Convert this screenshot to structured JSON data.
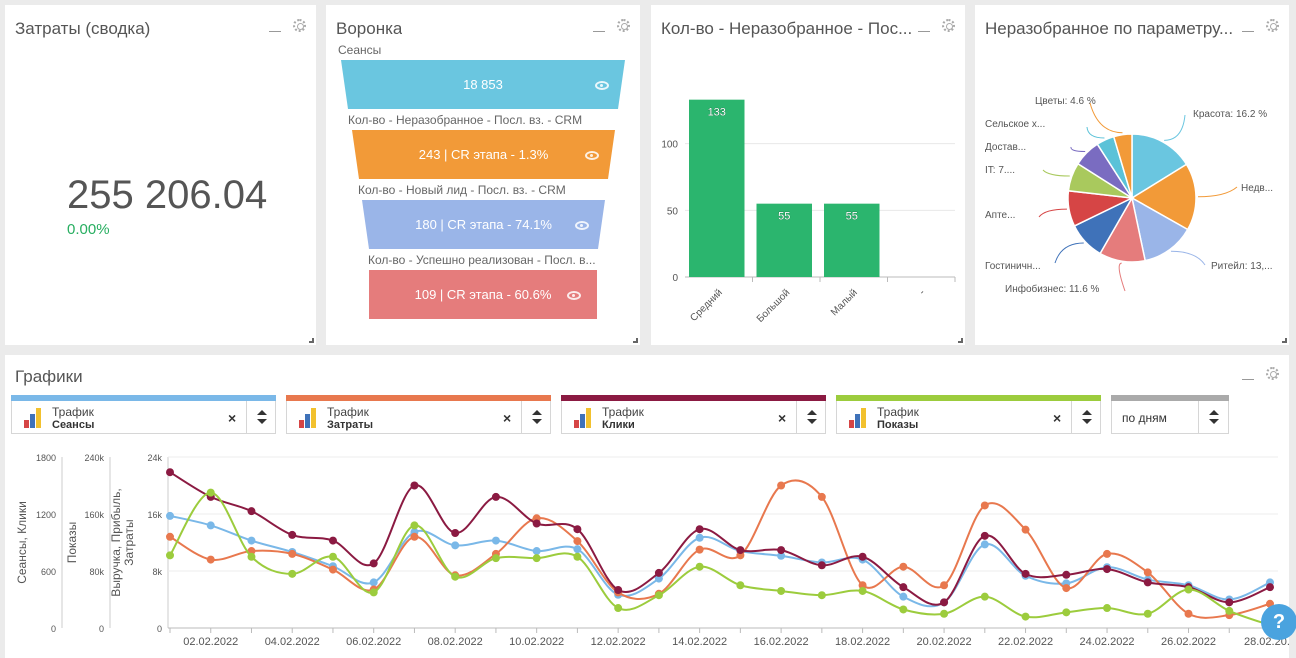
{
  "widgets": {
    "costs": {
      "title": "Затраты (сводка)",
      "value": "255 206.04",
      "delta": "0.00%"
    },
    "funnel": {
      "title": "Воронка",
      "stages": [
        {
          "label": "Сеансы",
          "value": "18 853",
          "color": "#6ac6e0"
        },
        {
          "label": "Кол-во - Неразобранное - Посл. вз. - CRM",
          "value": "243 | CR этапа - 1.3%",
          "color": "#f29a38"
        },
        {
          "label": "Кол-во - Новый лид - Посл. вз. - CRM",
          "value": "180 | CR этапа - 74.1%",
          "color": "#9ab5e8"
        },
        {
          "label": "Кол-во - Успешно реализован - Посл. в...",
          "value": "109 | CR этапа - 60.6%",
          "color": "#e57c7c"
        }
      ]
    },
    "bar": {
      "title": "Кол-во - Неразобранное - Пос..."
    },
    "pie": {
      "title": "Неразобранное по параметру..."
    }
  },
  "chart_data": [
    {
      "type": "bar",
      "categories": [
        "Средний",
        "Большой",
        "Малый",
        "-"
      ],
      "values": [
        133,
        55,
        55,
        0
      ],
      "ylim": [
        0,
        150
      ],
      "yticks": [
        0,
        50,
        100
      ],
      "color": "#2bb56e"
    },
    {
      "type": "pie",
      "slices": [
        {
          "label": "Красота: 16.2 %",
          "value": 16.2,
          "color": "#6ac6e0"
        },
        {
          "label": "Недв...",
          "value": 17.0,
          "color": "#f29a38"
        },
        {
          "label": "Ритейл: 13,...",
          "value": 13.5,
          "color": "#9ab5e8"
        },
        {
          "label": "Инфобизнес: 11.6 %",
          "value": 11.6,
          "color": "#e57c7c"
        },
        {
          "label": "Гостиничн...",
          "value": 9.5,
          "color": "#3f72b9"
        },
        {
          "label": "Апте...",
          "value": 9.0,
          "color": "#d64545"
        },
        {
          "label": "IT: 7....",
          "value": 7.2,
          "color": "#a9c95d"
        },
        {
          "label": "Достав...",
          "value": 6.9,
          "color": "#7a6cc1"
        },
        {
          "label": "Сельское х...",
          "value": 4.5,
          "color": "#5bc2d8"
        },
        {
          "label": "Цветы: 4.6 %",
          "value": 4.6,
          "color": "#f29a38"
        }
      ]
    },
    {
      "type": "line",
      "x": [
        "01.02.2022",
        "02.02.2022",
        "03.02.2022",
        "04.02.2022",
        "05.02.2022",
        "06.02.2022",
        "07.02.2022",
        "08.02.2022",
        "09.02.2022",
        "10.02.2022",
        "11.02.2022",
        "12.02.2022",
        "13.02.2022",
        "14.02.2022",
        "15.02.2022",
        "16.02.2022",
        "17.02.2022",
        "18.02.2022",
        "19.02.2022",
        "20.02.2022",
        "21.02.2022",
        "22.02.2022",
        "23.02.2022",
        "24.02.2022",
        "25.02.2022",
        "26.02.2022",
        "27.02.2022",
        "28.02.2022"
      ],
      "xticks": [
        "02.02.2022",
        "04.02.2022",
        "06.02.2022",
        "08.02.2022",
        "10.02.2022",
        "12.02.2022",
        "14.02.2022",
        "16.02.2022",
        "18.02.2022",
        "20.02.2022",
        "22.02.2022",
        "24.02.2022",
        "26.02.2022",
        "28.02.20..."
      ],
      "axes": [
        {
          "label": "Сеансы, Клики",
          "ticks": [
            "0",
            "600",
            "1200",
            "1800"
          ],
          "max": 1800
        },
        {
          "label": "Показы",
          "ticks": [
            "0",
            "80k",
            "160k",
            "240k"
          ],
          "max": 240000
        },
        {
          "label": "Выручка, Прибыль, Затраты",
          "ticks": [
            "0",
            "8k",
            "16k",
            "24k"
          ],
          "max": 24000
        }
      ],
      "series": [
        {
          "name": "Сеансы",
          "axis": 0,
          "color": "#7ab8e8",
          "values": [
            1180,
            1080,
            920,
            800,
            650,
            480,
            1010,
            870,
            920,
            810,
            830,
            350,
            520,
            950,
            810,
            760,
            690,
            720,
            330,
            270,
            880,
            550,
            470,
            640,
            510,
            450,
            300,
            480
          ]
        },
        {
          "name": "Затраты",
          "axis": 2,
          "color": "#e8784e",
          "values": [
            12800,
            9600,
            10800,
            10400,
            8200,
            5400,
            12800,
            7400,
            10400,
            15400,
            12200,
            5000,
            4800,
            11000,
            10200,
            20000,
            18400,
            6000,
            8600,
            6000,
            17200,
            13800,
            5600,
            10400,
            7800,
            2000,
            1800,
            3400
          ]
        },
        {
          "name": "Клики",
          "axis": 0,
          "color": "#8b1a42",
          "values": [
            1640,
            1380,
            1230,
            980,
            920,
            680,
            1500,
            1000,
            1380,
            1100,
            1040,
            400,
            580,
            1040,
            820,
            820,
            660,
            750,
            430,
            270,
            970,
            570,
            560,
            620,
            480,
            430,
            270,
            430
          ]
        },
        {
          "name": "Показы",
          "axis": 1,
          "color": "#9ccc3d",
          "values": [
            102000,
            190000,
            100000,
            76000,
            100000,
            50000,
            144000,
            72000,
            98000,
            98000,
            100000,
            28000,
            46000,
            86000,
            60000,
            52000,
            46000,
            52000,
            26000,
            20000,
            44000,
            16000,
            22000,
            28000,
            20000,
            54000,
            24000,
            4000
          ]
        }
      ]
    }
  ],
  "graphs": {
    "title": "Графики",
    "selectors": [
      {
        "t1": "Трафик",
        "t2": "Сеансы",
        "color": "#7ab8e8"
      },
      {
        "t1": "Трафик",
        "t2": "Затраты",
        "color": "#e8784e"
      },
      {
        "t1": "Трафик",
        "t2": "Клики",
        "color": "#8b1a42"
      },
      {
        "t1": "Трафик",
        "t2": "Показы",
        "color": "#9ccc3d"
      }
    ],
    "period": {
      "label": "по дням",
      "color": "#aaaaaa"
    }
  },
  "help": {
    "label": "?"
  }
}
